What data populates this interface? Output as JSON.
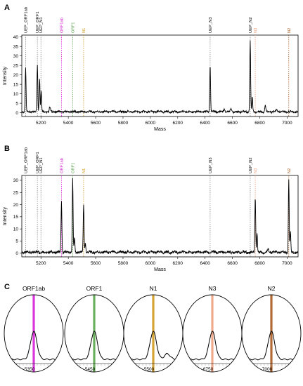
{
  "panel_letters": [
    "A",
    "B",
    "C"
  ],
  "colors": {
    "ORF1ab": "#d61fd6",
    "ORF1": "#5aa64c",
    "N1": "#d29a1e",
    "N3": "#f0a080",
    "N2": "#a85a20",
    "UEP": "#8a8a8a",
    "trace": "#000000"
  },
  "chart_data": [
    {
      "panel": "A",
      "type": "line",
      "xlabel": "Mass",
      "ylabel": "Intensity",
      "xlim": [
        5060,
        7080
      ],
      "ylim": [
        -2,
        41
      ],
      "xticks": [
        5200,
        5400,
        5600,
        5800,
        6000,
        6200,
        6400,
        6600,
        6800,
        7000
      ],
      "yticks": [
        0,
        5,
        10,
        15,
        20,
        25,
        30,
        35,
        40
      ],
      "markers": [
        {
          "label": "UEP_ORF1ab",
          "mass": 5088,
          "color": "UEP"
        },
        {
          "label": "UEP_ORF1",
          "mass": 5174,
          "color": "UEP"
        },
        {
          "label": "UEP_N1",
          "mass": 5200,
          "color": "UEP"
        },
        {
          "label": "ORF1ab",
          "mass": 5350,
          "color": "ORF1ab"
        },
        {
          "label": "ORF1",
          "mass": 5432,
          "color": "ORF1"
        },
        {
          "label": "N1",
          "mass": 5512,
          "color": "N1"
        },
        {
          "label": "UEP_N3",
          "mass": 6437,
          "color": "UEP"
        },
        {
          "label": "UEP_N2",
          "mass": 6730,
          "color": "UEP"
        },
        {
          "label": "N3",
          "mass": 6767,
          "color": "N3"
        },
        {
          "label": "N2",
          "mass": 7012,
          "color": "N2"
        }
      ],
      "peaks": [
        {
          "mass": 5088,
          "height": 23,
          "width": 3
        },
        {
          "mass": 5174,
          "height": 25,
          "width": 3
        },
        {
          "mass": 5190,
          "height": 18,
          "width": 3
        },
        {
          "mass": 5202,
          "height": 11,
          "width": 3
        },
        {
          "mass": 5265,
          "height": 2.5,
          "width": 4
        },
        {
          "mass": 6437,
          "height": 25,
          "width": 3
        },
        {
          "mass": 6540,
          "height": 1.5,
          "width": 4
        },
        {
          "mass": 6590,
          "height": 2,
          "width": 4
        },
        {
          "mass": 6730,
          "height": 38,
          "width": 3
        },
        {
          "mass": 6745,
          "height": 8,
          "width": 3
        },
        {
          "mass": 6840,
          "height": 3.5,
          "width": 4
        },
        {
          "mass": 6925,
          "height": 1,
          "width": 5
        }
      ],
      "baseline": 0.5
    },
    {
      "panel": "B",
      "type": "line",
      "xlabel": "Mass",
      "ylabel": "Intensity",
      "xlim": [
        5060,
        7080
      ],
      "ylim": [
        -1.5,
        32
      ],
      "xticks": [
        5200,
        5400,
        5600,
        5800,
        6000,
        6200,
        6400,
        6600,
        6800,
        7000
      ],
      "yticks": [
        0,
        5,
        10,
        15,
        20,
        25,
        30
      ],
      "markers": [
        {
          "label": "UEP_ORF1ab",
          "mass": 5088,
          "color": "UEP"
        },
        {
          "label": "UEP_ORF1",
          "mass": 5174,
          "color": "UEP"
        },
        {
          "label": "UEP_N1",
          "mass": 5200,
          "color": "UEP"
        },
        {
          "label": "ORF1ab",
          "mass": 5350,
          "color": "ORF1ab"
        },
        {
          "label": "ORF1",
          "mass": 5432,
          "color": "ORF1"
        },
        {
          "label": "N1",
          "mass": 5512,
          "color": "N1"
        },
        {
          "label": "UEP_N3",
          "mass": 6437,
          "color": "UEP"
        },
        {
          "label": "UEP_N2",
          "mass": 6730,
          "color": "UEP"
        },
        {
          "label": "N3",
          "mass": 6767,
          "color": "N3"
        },
        {
          "label": "N2",
          "mass": 7012,
          "color": "N2"
        }
      ],
      "peaks": [
        {
          "mass": 5350,
          "height": 21,
          "width": 3
        },
        {
          "mass": 5432,
          "height": 30,
          "width": 3
        },
        {
          "mass": 5445,
          "height": 6,
          "width": 3
        },
        {
          "mass": 5512,
          "height": 20,
          "width": 3
        },
        {
          "mass": 5525,
          "height": 4,
          "width": 3
        },
        {
          "mass": 5180,
          "height": 1,
          "width": 3
        },
        {
          "mass": 6767,
          "height": 23,
          "width": 3
        },
        {
          "mass": 6780,
          "height": 8,
          "width": 3
        },
        {
          "mass": 6860,
          "height": 1.5,
          "width": 4
        },
        {
          "mass": 7012,
          "height": 30,
          "width": 3
        },
        {
          "mass": 7024,
          "height": 8,
          "width": 3
        }
      ],
      "baseline": 0.4
    }
  ],
  "zooms": [
    {
      "title": "ORF1ab",
      "tick": "5350",
      "color": "ORF1ab"
    },
    {
      "title": "ORF1",
      "tick": "5450",
      "color": "ORF1"
    },
    {
      "title": "N1",
      "tick": "5500",
      "color": "N1"
    },
    {
      "title": "N3",
      "tick": "6750",
      "color": "N3"
    },
    {
      "title": "N2",
      "tick": "7000",
      "color": "N2"
    }
  ]
}
